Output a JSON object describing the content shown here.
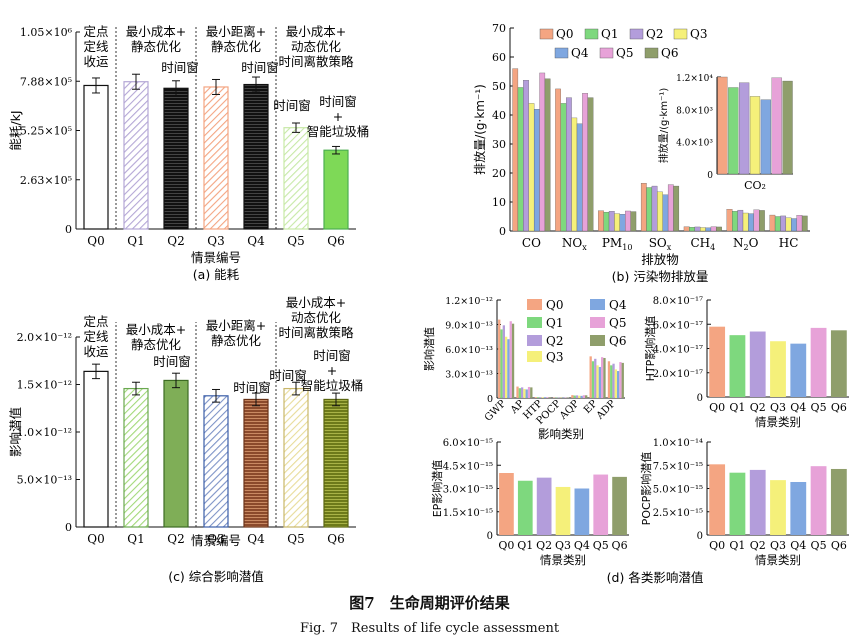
{
  "figure": {
    "caption_cn": "图7　生命周期评价结果",
    "caption_en": "Fig. 7　Results of life cycle assessment"
  },
  "chart_data": [
    {
      "id": "a",
      "type": "bar",
      "subcaption": "(a) 能耗",
      "xlabel": "情景编号",
      "ylabel": "能耗/kJ",
      "categories": [
        "Q0",
        "Q1",
        "Q2",
        "Q3",
        "Q4",
        "Q5",
        "Q6"
      ],
      "values": [
        765000,
        785000,
        750000,
        757000,
        770000,
        540000,
        420000
      ],
      "errors": [
        40000,
        40000,
        40000,
        40000,
        40000,
        25000,
        20000
      ],
      "ylim": [
        0,
        1050000
      ],
      "yticks": [
        "0",
        "2.63×10⁵",
        "5.25×10⁵",
        "7.88×10⁵",
        "1.05×10⁶"
      ],
      "yticks_values": [
        0,
        262500,
        525000,
        787500,
        1050000
      ],
      "colors": [
        "#ffffff",
        "#b4a7d6",
        "#1f1f1f",
        "#f4a582",
        "#1f1f1f",
        "#c7e9a7",
        "#7ed957"
      ],
      "patterns": [
        "none",
        "hatch",
        "dark",
        "hatch",
        "dark",
        "hatch",
        "solid"
      ],
      "annotations": [
        {
          "lines": [
            "定点",
            "定线",
            "收运"
          ],
          "bar": 0
        },
        {
          "lines": [
            "最小成本+",
            "静态优化"
          ],
          "bar": 1
        },
        {
          "lines": [
            "时间窗"
          ],
          "bar": 2
        },
        {
          "lines": [
            "最小距离+",
            "静态优化"
          ],
          "bar": 3
        },
        {
          "lines": [
            "时间窗"
          ],
          "bar": 4
        },
        {
          "lines": [
            "最小成本+",
            "动态优化",
            "时间离散策略"
          ],
          "bar": 5
        },
        {
          "lines": [
            "时间窗"
          ],
          "bar": 5
        },
        {
          "lines": [
            "时间窗",
            "+",
            "智能垃圾桶"
          ],
          "bar": 6
        }
      ]
    },
    {
      "id": "b",
      "type": "bar",
      "subcaption": "(b) 污染物排放量",
      "xlabel": "排放物",
      "ylabel": "排放量/(g·km⁻¹)",
      "categories": [
        "CO",
        "NOx",
        "PM10",
        "SOx",
        "CH4",
        "N2O",
        "HC"
      ],
      "series": [
        {
          "name": "Q0",
          "values": [
            56,
            49,
            7,
            16.5,
            1.5,
            7.5,
            5.5
          ]
        },
        {
          "name": "Q1",
          "values": [
            49.5,
            44,
            6.5,
            15,
            1.3,
            6.8,
            5.0
          ]
        },
        {
          "name": "Q2",
          "values": [
            52,
            46,
            6.8,
            15.5,
            1.4,
            7.2,
            5.2
          ]
        },
        {
          "name": "Q3",
          "values": [
            44,
            39,
            6.0,
            13.5,
            1.2,
            6.2,
            4.6
          ]
        },
        {
          "name": "Q4",
          "values": [
            42,
            37,
            5.8,
            12.5,
            1.1,
            6.0,
            4.3
          ]
        },
        {
          "name": "Q5",
          "values": [
            54.5,
            47.5,
            6.9,
            16,
            1.5,
            7.3,
            5.4
          ]
        },
        {
          "name": "Q6",
          "values": [
            52.5,
            46,
            6.7,
            15.5,
            1.4,
            7.1,
            5.2
          ]
        }
      ],
      "ylim": [
        0,
        70
      ],
      "yticks": [
        "0",
        "10",
        "20",
        "30",
        "40",
        "50",
        "60",
        "70"
      ],
      "inset": {
        "xlabel": "CO₂",
        "ylabel": "排放量/(g·km⁻¹)",
        "values": [
          12000,
          10700,
          11300,
          9600,
          9200,
          11900,
          11500
        ],
        "ylim": [
          0,
          12000
        ],
        "yticks": [
          "0",
          "4.0×10³",
          "8.0×10³",
          "1.2×10⁴"
        ]
      },
      "legend_position": "top-right"
    },
    {
      "id": "c",
      "type": "bar",
      "subcaption": "(c) 综合影响潜值",
      "xlabel": "情景编号",
      "ylabel": "影响潜值",
      "categories": [
        "Q0",
        "Q1",
        "Q2",
        "Q3",
        "Q4",
        "Q5",
        "Q6"
      ],
      "values": [
        1.72e-12,
        1.53e-12,
        1.62e-12,
        1.45e-12,
        1.41e-12,
        1.53e-12,
        1.41e-12
      ],
      "errors": [
        8e-14,
        7e-14,
        8e-14,
        7e-14,
        7e-14,
        7e-14,
        7e-14
      ],
      "ylim": [
        0,
        2.1e-12
      ],
      "yticks": [
        "0",
        "5.0×10⁻¹³",
        "1.0×10⁻¹²",
        "1.5×10⁻¹²",
        "2.0×10⁻¹²"
      ],
      "yticks_values": [
        0,
        5e-13,
        1e-12,
        1.5e-12,
        2e-12
      ],
      "colors": [
        "#ffffff",
        "#a3d97a",
        "#5d8a3a",
        "#3b5ea8",
        "#8b4a2c",
        "#fff2cc",
        "#7d8a1f"
      ],
      "patterns": [
        "none",
        "hatch",
        "solid",
        "hatch",
        "dark",
        "hatch",
        "dark"
      ],
      "annotations": [
        {
          "lines": [
            "定点",
            "定线",
            "收运"
          ],
          "bar": 0
        },
        {
          "lines": [
            "最小成本+",
            "静态优化"
          ],
          "bar": 1
        },
        {
          "lines": [
            "时间窗"
          ],
          "bar": 2
        },
        {
          "lines": [
            "最小距离+",
            "静态优化"
          ],
          "bar": 3
        },
        {
          "lines": [
            "时间窗"
          ],
          "bar": 4
        },
        {
          "lines": [
            "最小成本+",
            "动态优化",
            "时间离散策略"
          ],
          "bar": 5
        },
        {
          "lines": [
            "时间窗"
          ],
          "bar": 5
        },
        {
          "lines": [
            "时间窗",
            "+",
            "智能垃圾桶"
          ],
          "bar": 6
        }
      ]
    },
    {
      "id": "d",
      "type": "bar",
      "subcaption": "(d) 各类影响潜值",
      "panels": [
        {
          "xlabel": "影响类别",
          "ylabel": "影响潜值",
          "categories": [
            "GWP",
            "AP",
            "HTP",
            "POCP",
            "AQP",
            "EP",
            "ADP"
          ],
          "series_values": [
            [
              9.6e-13,
              1.4e-13,
              1e-14,
              5e-15,
              3.5e-14,
              5.1e-13,
              4.5e-13
            ],
            [
              8.4e-13,
              1.2e-13,
              1e-14,
              5e-15,
              3e-14,
              4.5e-13,
              4e-13
            ],
            [
              8.9e-13,
              1.3e-13,
              1e-14,
              5e-15,
              3.2e-14,
              4.8e-13,
              4.2e-13
            ],
            [
              7.5e-13,
              1.1e-13,
              1e-14,
              4e-15,
              2.8e-14,
              4e-13,
              3.5e-13
            ],
            [
              7.2e-13,
              1.05e-13,
              1e-14,
              4e-15,
              2.6e-14,
              3.8e-13,
              3.3e-13
            ],
            [
              9.4e-13,
              1.35e-13,
              1e-14,
              5e-15,
              3.4e-14,
              5e-13,
              4.4e-13
            ],
            [
              9.1e-13,
              1.3e-13,
              1e-14,
              5e-15,
              3.3e-14,
              4.9e-13,
              4.3e-13
            ]
          ],
          "ylim": [
            0,
            1.2e-12
          ],
          "yticks": [
            "0",
            "3.0×10⁻¹³",
            "6.0×10⁻¹³",
            "9.0×10⁻¹³",
            "1.2×10⁻¹²"
          ]
        },
        {
          "xlabel": "情景类别",
          "ylabel": "HTP影响潜值",
          "categories": [
            "Q0",
            "Q1",
            "Q2",
            "Q3",
            "Q4",
            "Q5",
            "Q6"
          ],
          "values": [
            5.8e-17,
            5.1e-17,
            5.4e-17,
            4.6e-17,
            4.4e-17,
            5.7e-17,
            5.5e-17
          ],
          "ylim": [
            0,
            8e-17
          ],
          "yticks": [
            "0",
            "2.0×10⁻¹⁷",
            "4.0×10⁻¹⁷",
            "6.0×10⁻¹⁷",
            "8.0×10⁻¹⁷"
          ]
        },
        {
          "xlabel": "情景类别",
          "ylabel": "EP影响潜值",
          "categories": [
            "Q0",
            "Q1",
            "Q2",
            "Q3",
            "Q4",
            "Q5",
            "Q6"
          ],
          "values": [
            4e-15,
            3.5e-15,
            3.7e-15,
            3.1e-15,
            3e-15,
            3.9e-15,
            3.75e-15
          ],
          "ylim": [
            0,
            6e-15
          ],
          "yticks": [
            "0",
            "1.5×10⁻¹⁵",
            "3.0×10⁻¹⁵",
            "4.5×10⁻¹⁵",
            "6.0×10⁻¹⁵"
          ]
        },
        {
          "xlabel": "情景类别",
          "ylabel": "POCP影响潜值",
          "categories": [
            "Q0",
            "Q1",
            "Q2",
            "Q3",
            "Q4",
            "Q5",
            "Q6"
          ],
          "values": [
            7.6e-15,
            6.7e-15,
            7e-15,
            5.9e-15,
            5.7e-15,
            7.4e-15,
            7.1e-15
          ],
          "ylim": [
            0,
            1e-14
          ],
          "yticks": [
            "0",
            "2.5×10⁻¹⁵",
            "5.0×10⁻¹⁵",
            "7.5×10⁻¹⁵",
            "1.0×10⁻¹⁴"
          ]
        }
      ]
    }
  ],
  "legend_series_names": [
    "Q0",
    "Q1",
    "Q2",
    "Q3",
    "Q4",
    "Q5",
    "Q6"
  ],
  "legend_colors": [
    "#f4a582",
    "#7ed87e",
    "#b39ddb",
    "#f5f07a",
    "#7fa7e0",
    "#e7a2d8",
    "#8f9e6b"
  ]
}
